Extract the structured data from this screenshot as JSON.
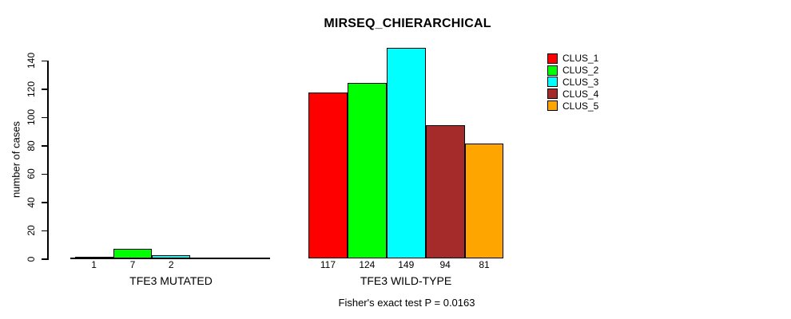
{
  "chart_data": {
    "type": "bar",
    "title": "MIRSEQ_CHIERARCHICAL",
    "ylabel": "number of cases",
    "xlabel": "",
    "ylim": [
      0,
      140
    ],
    "yticks": [
      0,
      20,
      40,
      60,
      80,
      100,
      120,
      140
    ],
    "grid": false,
    "legend_position": "topright-outside",
    "series": [
      {
        "name": "CLUS_1",
        "color": "#FF0000"
      },
      {
        "name": "CLUS_2",
        "color": "#00FF00"
      },
      {
        "name": "CLUS_3",
        "color": "#00FFFF"
      },
      {
        "name": "CLUS_4",
        "color": "#A52A2A"
      },
      {
        "name": "CLUS_5",
        "color": "#FFA500"
      }
    ],
    "groups": [
      {
        "label": "TFE3 MUTATED",
        "values": [
          1,
          7,
          2,
          0,
          0
        ],
        "bar_labels": [
          "1",
          "7",
          "2",
          "",
          ""
        ]
      },
      {
        "label": "TFE3 WILD-TYPE",
        "values": [
          117,
          124,
          149,
          94,
          81
        ],
        "bar_labels": [
          "117",
          "124",
          "149",
          "94",
          "81"
        ]
      }
    ],
    "caption": "Fisher's exact test P = 0.0163"
  }
}
